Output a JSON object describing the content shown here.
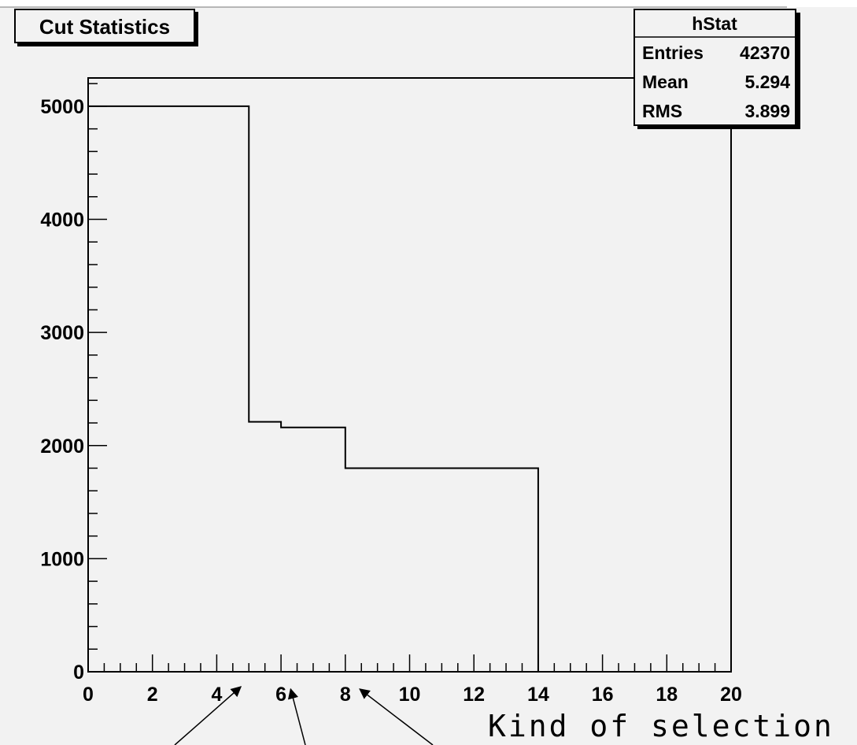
{
  "chart_data": {
    "type": "step-histogram",
    "title": "Cut Statistics",
    "bin_edges": [
      0,
      5,
      6,
      8,
      14,
      20
    ],
    "values": [
      5000,
      2210,
      2160,
      1800,
      0
    ],
    "xlim": [
      0,
      20
    ],
    "ylim": [
      0,
      5250
    ],
    "x_ticks": [
      0,
      2,
      4,
      6,
      8,
      10,
      12,
      14,
      16,
      18,
      20
    ],
    "y_ticks": [
      0,
      1000,
      2000,
      3000,
      4000,
      5000
    ],
    "stats_box": {
      "name": "hStat",
      "rows": [
        {
          "label": "Entries",
          "value": "42370"
        },
        {
          "label": "Mean",
          "value": "5.294"
        },
        {
          "label": "RMS",
          "value": "3.899"
        }
      ]
    },
    "annotation": {
      "text": "Kind of selection",
      "arrow_targets_x": [
        4.7,
        6.0,
        8.5
      ]
    }
  }
}
